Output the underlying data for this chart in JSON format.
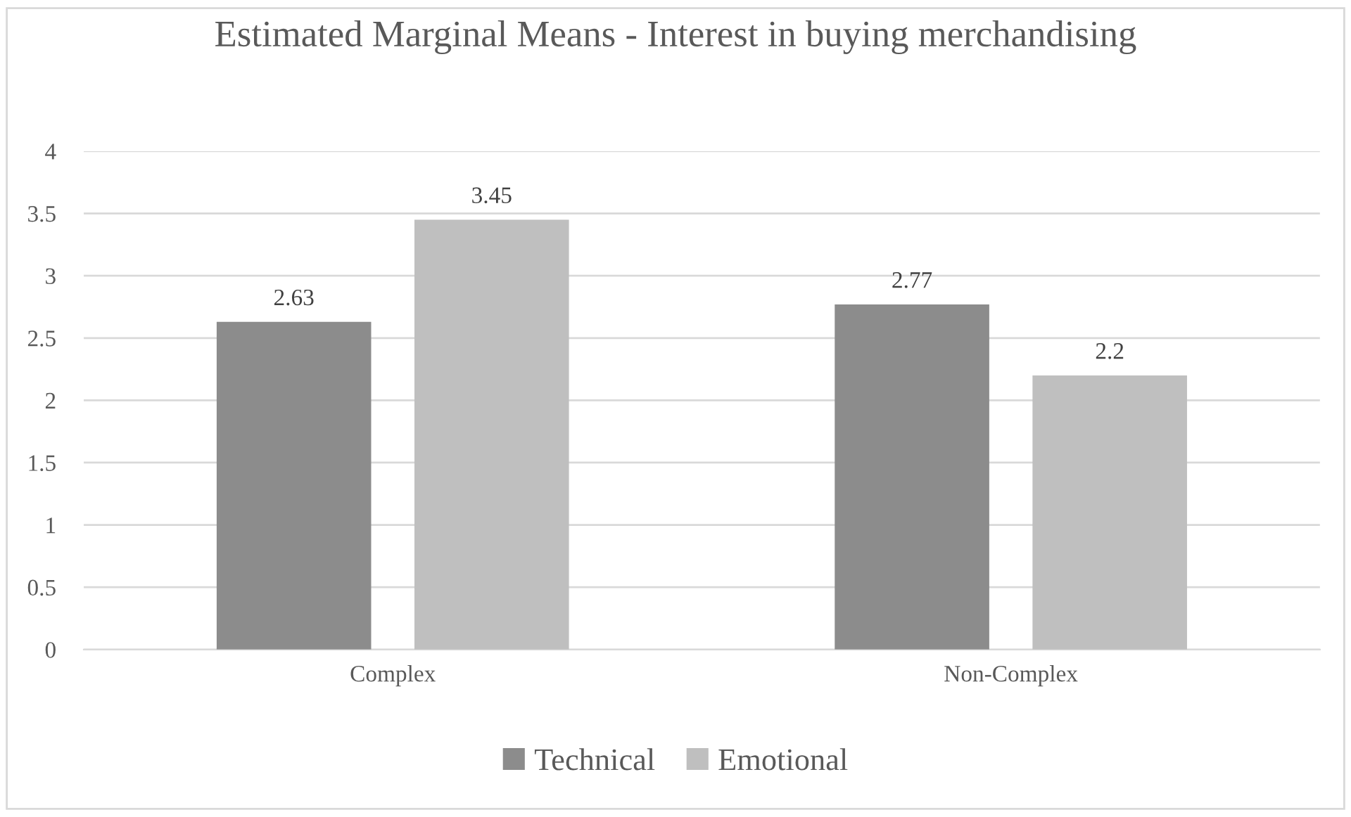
{
  "chart_data": {
    "type": "bar",
    "title": "Estimated Marginal Means - Interest in buying merchandising",
    "categories": [
      "Complex",
      "Non-Complex"
    ],
    "series": [
      {
        "name": "Technical",
        "color": "#8c8c8c",
        "values": [
          2.63,
          2.77
        ]
      },
      {
        "name": "Emotional",
        "color": "#bfbfbf",
        "values": [
          3.45,
          2.2
        ]
      }
    ],
    "ylim": [
      0,
      4
    ],
    "yticks": [
      0,
      0.5,
      1,
      1.5,
      2,
      2.5,
      3,
      3.5,
      4
    ],
    "grid": "y",
    "legend": "bottom",
    "data_labels": true
  }
}
